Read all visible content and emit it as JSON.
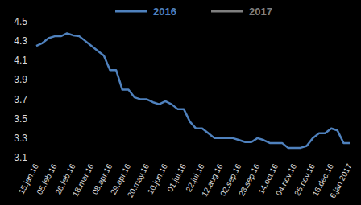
{
  "chart_data": {
    "type": "line",
    "categories": [
      "15.jan.16",
      null,
      null,
      "05.feb.16",
      null,
      null,
      "26.feb.16",
      null,
      null,
      "18.mar.16",
      null,
      null,
      "08.apr.16",
      null,
      null,
      "29.apr.16",
      null,
      null,
      "20.may.16",
      null,
      null,
      "10.jun.16",
      null,
      null,
      "01.jul.16",
      null,
      null,
      "22.jul.16",
      null,
      null,
      "12.aug.16",
      null,
      null,
      "02.sep.16",
      null,
      null,
      "23.sep.16",
      null,
      null,
      "14.oct.16",
      null,
      null,
      "04.nov.16",
      null,
      null,
      "25.nov.16",
      null,
      null,
      "16.dec.16",
      null,
      null,
      "6.jan.2017"
    ],
    "series": [
      {
        "name": "2016",
        "color": "#4f81bd",
        "values": [
          4.25,
          4.28,
          4.33,
          4.35,
          4.35,
          4.38,
          4.36,
          4.35,
          4.3,
          4.25,
          4.2,
          4.15,
          4.0,
          4.0,
          3.8,
          3.8,
          3.72,
          3.7,
          3.7,
          3.67,
          3.65,
          3.68,
          3.65,
          3.6,
          3.6,
          3.47,
          3.4,
          3.4,
          3.35,
          3.3,
          3.3,
          3.3,
          3.3,
          3.28,
          3.26,
          3.26,
          3.3,
          3.28,
          3.25,
          3.25,
          3.25,
          3.2,
          3.2,
          3.2,
          3.22,
          3.3,
          3.35,
          3.35,
          3.4,
          3.38,
          3.25,
          3.25
        ]
      },
      {
        "name": "2017",
        "color": "#7f7f7f",
        "values": [
          null,
          null,
          null,
          null,
          null,
          null,
          null,
          null,
          null,
          null,
          null,
          null,
          null,
          null,
          null,
          null,
          null,
          null,
          null,
          null,
          null,
          null,
          null,
          null,
          null,
          null,
          null,
          null,
          null,
          null,
          null,
          null,
          null,
          null,
          null,
          null,
          null,
          null,
          null,
          null,
          null,
          null,
          null,
          null,
          null,
          null,
          null,
          null,
          null,
          null,
          null,
          null
        ]
      }
    ],
    "ylim": [
      3.1,
      4.5
    ],
    "yticks": [
      3.1,
      3.3,
      3.5,
      3.7,
      3.9,
      4.1,
      4.3,
      4.5
    ],
    "grid": false,
    "legend": "top"
  }
}
